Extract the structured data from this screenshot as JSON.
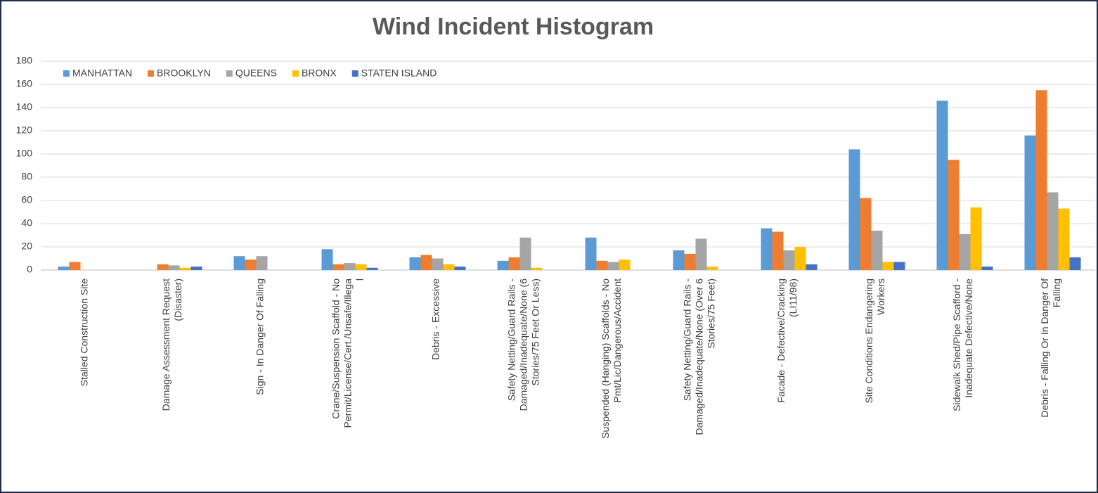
{
  "chart_data": {
    "type": "bar",
    "title": "Wind Incident Histogram",
    "categories": [
      "Stalled Construction Site",
      "Damage Assessment Request (Disaster)",
      "Sign - In Danger Of Falling",
      "Crane/Suspension Scaffold - No Permit/License/Cert./Unsafe/Illegal",
      "Debris - Excessive",
      "Safety Netting/Guard Rails - Damaged/Inadequate/None (6 Stories/75 Feet Or Less)",
      "Suspended (Hanging) Scaffolds - No Pmt/Lic/Dangerous/Accident",
      "Safety Netting/Guard Rails - Damaged/Inadequate/None (Over 6 Stories/75 Feet)",
      "Facade - Defective/Cracking (LI11/98)",
      "Site Conditions Endangering Workers",
      "Sidewalk Shed/Pipe Scafford - Inadequate Defective/None",
      "Debris - Falling Or In Danger Of Falling"
    ],
    "series": [
      {
        "name": "MANHATTAN",
        "color": "#5b9bd5",
        "values": [
          3,
          0,
          12,
          18,
          11,
          8,
          28,
          17,
          36,
          104,
          146,
          116
        ]
      },
      {
        "name": "BROOKLYN",
        "color": "#ed7d31",
        "values": [
          7,
          5,
          9,
          5,
          13,
          11,
          8,
          14,
          33,
          62,
          95,
          155
        ]
      },
      {
        "name": "QUEENS",
        "color": "#a5a5a5",
        "values": [
          0,
          4,
          12,
          6,
          10,
          28,
          7,
          27,
          17,
          34,
          31,
          67
        ]
      },
      {
        "name": "BRONX",
        "color": "#ffc000",
        "values": [
          0,
          2,
          0,
          5,
          5,
          2,
          9,
          3,
          20,
          7,
          54,
          53
        ]
      },
      {
        "name": "STATEN ISLAND",
        "color": "#4472c4",
        "values": [
          0,
          3,
          0,
          2,
          3,
          0,
          0,
          0,
          5,
          7,
          3,
          11
        ]
      }
    ],
    "ylim": [
      0,
      180
    ],
    "yticks": [
      0,
      20,
      40,
      60,
      80,
      100,
      120,
      140,
      160,
      180
    ],
    "grid": true,
    "legend": "top-left"
  }
}
